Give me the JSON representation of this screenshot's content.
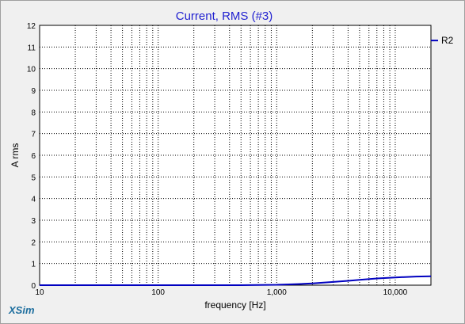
{
  "brand": "XSim",
  "chart_data": {
    "type": "line",
    "title": "Current, RMS (#3)",
    "xlabel": "frequency [Hz]",
    "ylabel": "A rms",
    "xscale": "log",
    "xlim": [
      10,
      20000
    ],
    "ylim": [
      0,
      12
    ],
    "grid": true,
    "legend_position": "right",
    "yticks": [
      "0",
      "1",
      "2",
      "3",
      "4",
      "5",
      "6",
      "7",
      "8",
      "9",
      "10",
      "11",
      "12"
    ],
    "xtick_labels": [
      {
        "value": 10,
        "label": "10"
      },
      {
        "value": 100,
        "label": "100"
      },
      {
        "value": 1000,
        "label": "1,000"
      },
      {
        "value": 10000,
        "label": "10,000"
      }
    ],
    "series": [
      {
        "name": "R2",
        "color": "#0000c0",
        "legend_value": 11.3,
        "x": [
          10,
          100,
          500,
          1000,
          1500,
          2000,
          3000,
          4000,
          5000,
          7000,
          10000,
          15000,
          20000
        ],
        "y": [
          0,
          0,
          0,
          0.02,
          0.05,
          0.08,
          0.15,
          0.2,
          0.25,
          0.31,
          0.36,
          0.4,
          0.41
        ]
      }
    ]
  }
}
